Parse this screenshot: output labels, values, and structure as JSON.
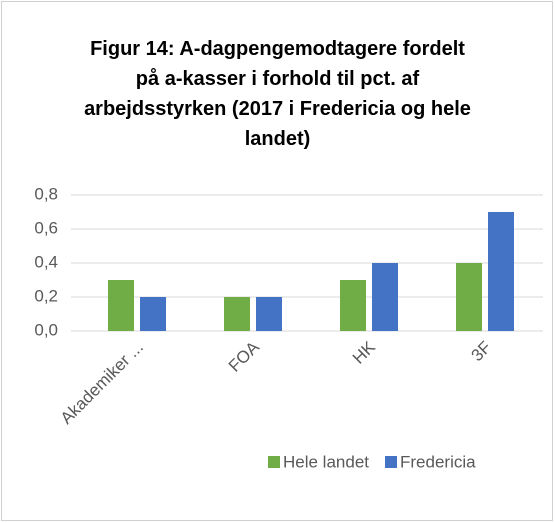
{
  "chart_data": {
    "type": "bar",
    "title": "Figur 14: A-dagpengemodtagere fordelt på a-kasser i forhold til pct. af arbejdsstyrken (2017 i Fredericia og hele landet)",
    "categories": [
      "Akademiker ...",
      "FOA",
      "HK",
      "3F"
    ],
    "series": [
      {
        "name": "Hele landet",
        "color": "#70ad47",
        "values": [
          0.3,
          0.2,
          0.3,
          0.4
        ]
      },
      {
        "name": "Fredericia",
        "color": "#4472c4",
        "values": [
          0.2,
          0.2,
          0.4,
          0.7
        ]
      }
    ],
    "ylim": [
      0,
      0.8
    ],
    "yticks": [
      {
        "value": 0,
        "label": "0,0"
      },
      {
        "value": 0.2,
        "label": "0,2"
      },
      {
        "value": 0.4,
        "label": "0,4"
      },
      {
        "value": 0.6,
        "label": "0,6"
      },
      {
        "value": 0.8,
        "label": "0,8"
      }
    ],
    "grid": true,
    "legend": "bottom"
  }
}
